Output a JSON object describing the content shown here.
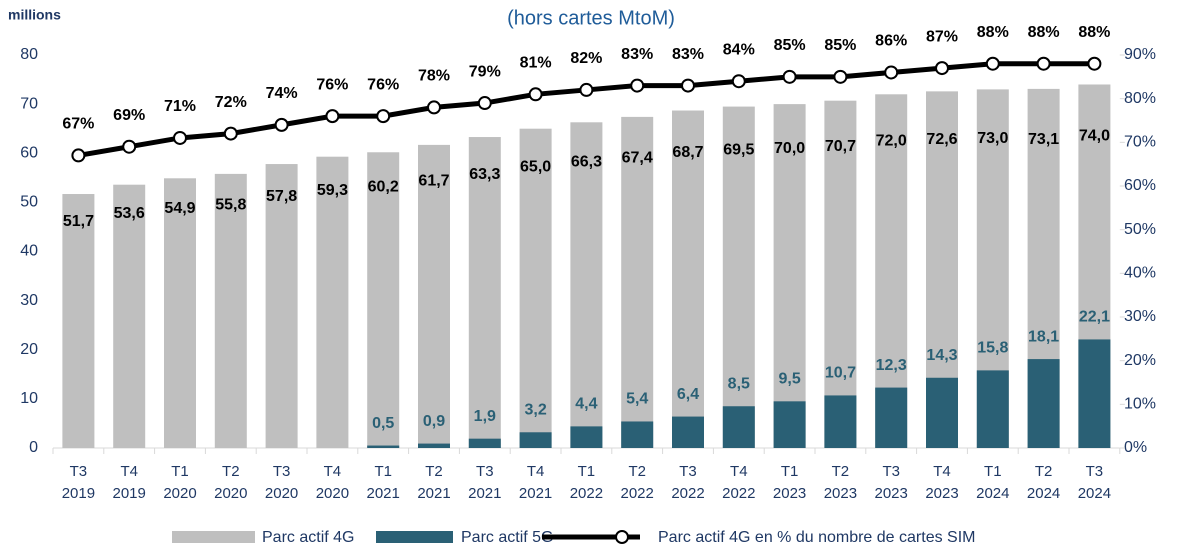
{
  "chart_data": {
    "type": "bar-line",
    "title": "(hors cartes MtoM)",
    "y_label": "millions",
    "categories": [
      [
        "T3",
        "2019"
      ],
      [
        "T4",
        "2019"
      ],
      [
        "T1",
        "2020"
      ],
      [
        "T2",
        "2020"
      ],
      [
        "T3",
        "2020"
      ],
      [
        "T4",
        "2020"
      ],
      [
        "T1",
        "2021"
      ],
      [
        "T2",
        "2021"
      ],
      [
        "T3",
        "2021"
      ],
      [
        "T4",
        "2021"
      ],
      [
        "T1",
        "2022"
      ],
      [
        "T2",
        "2022"
      ],
      [
        "T3",
        "2022"
      ],
      [
        "T4",
        "2022"
      ],
      [
        "T1",
        "2023"
      ],
      [
        "T2",
        "2023"
      ],
      [
        "T3",
        "2023"
      ],
      [
        "T4",
        "2023"
      ],
      [
        "T1",
        "2024"
      ],
      [
        "T2",
        "2024"
      ],
      [
        "T3",
        "2024"
      ]
    ],
    "ylim": [
      0,
      80
    ],
    "yticks": [
      0,
      10,
      20,
      30,
      40,
      50,
      60,
      70,
      80
    ],
    "y2lim": [
      0,
      90
    ],
    "y2ticks": [
      {
        "value": 0,
        "label": "0%"
      },
      {
        "value": 10,
        "label": "10%"
      },
      {
        "value": 20,
        "label": "20%"
      },
      {
        "value": 30,
        "label": "30%"
      },
      {
        "value": 40,
        "label": "40%"
      },
      {
        "value": 50,
        "label": "50%"
      },
      {
        "value": 60,
        "label": "60%"
      },
      {
        "value": 70,
        "label": "70%"
      },
      {
        "value": 80,
        "label": "80%"
      },
      {
        "value": 90,
        "label": "90%"
      }
    ],
    "series": [
      {
        "name": "Parc actif 4G",
        "kind": "bar",
        "color": "#bfbfbf",
        "values": [
          51.7,
          53.6,
          54.9,
          55.8,
          57.8,
          59.3,
          60.2,
          61.7,
          63.3,
          65.0,
          66.3,
          67.4,
          68.7,
          69.5,
          70.0,
          70.7,
          72.0,
          72.6,
          73.0,
          73.1,
          74.0
        ],
        "value_labels": [
          "51,7",
          "53,6",
          "54,9",
          "55,8",
          "57,8",
          "59,3",
          "60,2",
          "61,7",
          "63,3",
          "65,0",
          "66,3",
          "67,4",
          "68,7",
          "69,5",
          "70,0",
          "70,7",
          "72,0",
          "72,6",
          "73,0",
          "73,1",
          "74,0"
        ]
      },
      {
        "name": "Parc actif 5G",
        "kind": "bar",
        "color": "#2a6075",
        "values": [
          null,
          null,
          null,
          null,
          null,
          null,
          0.5,
          0.9,
          1.9,
          3.2,
          4.4,
          5.4,
          6.4,
          8.5,
          9.5,
          10.7,
          12.3,
          14.3,
          15.8,
          18.1,
          22.1
        ],
        "value_labels": [
          null,
          null,
          null,
          null,
          null,
          null,
          "0,5",
          "0,9",
          "1,9",
          "3,2",
          "4,4",
          "5,4",
          "6,4",
          "8,5",
          "9,5",
          "10,7",
          "12,3",
          "14,3",
          "15,8",
          "18,1",
          "22,1"
        ]
      },
      {
        "name": "Parc actif 4G en % du nombre de cartes SIM",
        "kind": "line",
        "axis": "y2",
        "color": "#000000",
        "values": [
          67,
          69,
          71,
          72,
          74,
          76,
          76,
          78,
          79,
          81,
          82,
          83,
          83,
          84,
          85,
          85,
          86,
          87,
          88,
          88,
          88
        ],
        "value_labels": [
          "67%",
          "69%",
          "71%",
          "72%",
          "74%",
          "76%",
          "76%",
          "78%",
          "79%",
          "81%",
          "82%",
          "83%",
          "83%",
          "84%",
          "85%",
          "85%",
          "86%",
          "87%",
          "88%",
          "88%",
          "88%"
        ]
      }
    ]
  }
}
